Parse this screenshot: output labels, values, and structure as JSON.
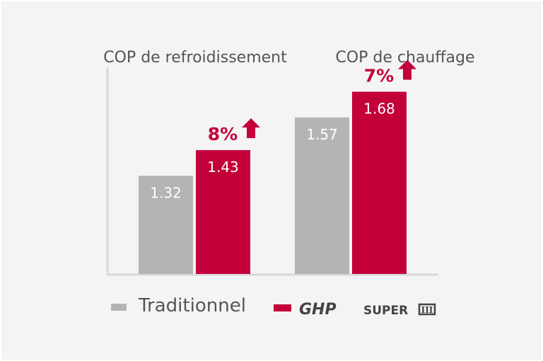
{
  "chart_data": {
    "type": "bar",
    "categories": [
      "COP de refroidissement",
      "COP de chauffage"
    ],
    "series": [
      {
        "name": "Traditionnel",
        "values": [
          1.32,
          1.57
        ],
        "color": "#b4b4b4"
      },
      {
        "name": "GHP SUPER III",
        "values": [
          1.43,
          1.68
        ],
        "color": "#c4003a"
      }
    ],
    "value_labels": [
      [
        "1.32",
        "1.57"
      ],
      [
        "1.43",
        "1.68"
      ]
    ],
    "annotations": [
      "8%",
      "7%"
    ],
    "annotation_icon": "arrow-up-icon",
    "xlabel": "",
    "ylabel": "",
    "grid": false,
    "legend": "bottom",
    "legend_labels": {
      "traditional": "Traditionnel",
      "ghp_brand": "GHP",
      "ghp_super": "SUPER",
      "ghp_roman": "III"
    }
  }
}
